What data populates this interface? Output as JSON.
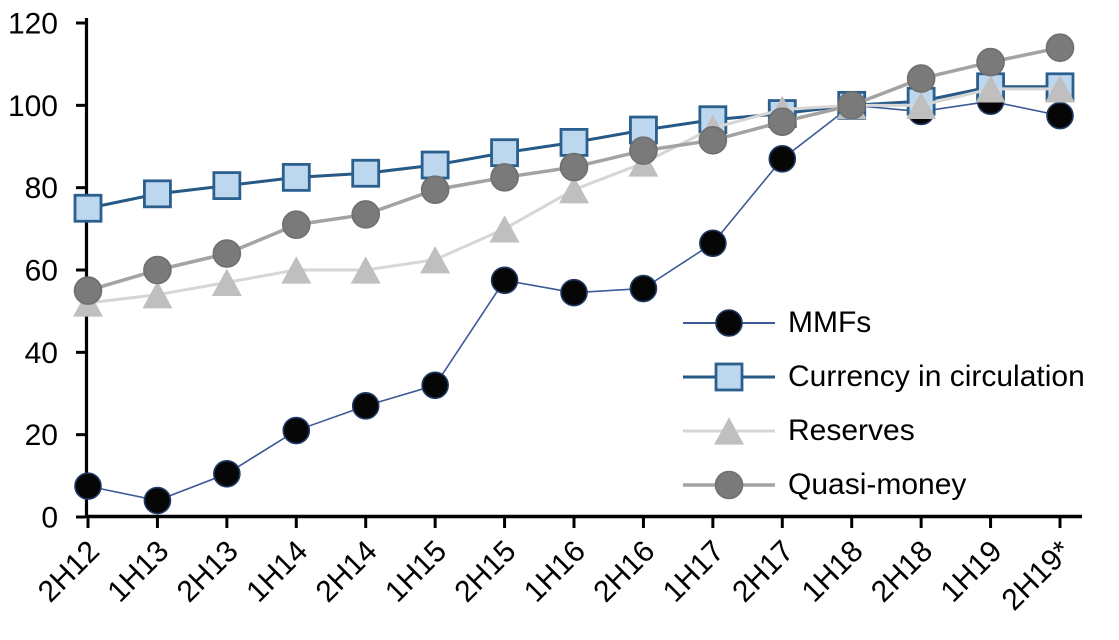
{
  "chart_data": {
    "type": "line",
    "title": "",
    "categories": [
      "2H12",
      "1H13",
      "2H13",
      "1H14",
      "2H14",
      "1H15",
      "2H15",
      "1H16",
      "2H16",
      "1H17",
      "2H17",
      "1H18",
      "2H18",
      "1H19",
      "2H19*"
    ],
    "series": [
      {
        "name": "MMFs",
        "marker": "circle",
        "marker_size": 28,
        "marker_color": "#060606",
        "marker_stroke": "#1f3864",
        "line_color": "#3d5a96",
        "line_width": 1.6,
        "values": [
          7.5,
          4,
          10.5,
          21,
          27,
          32,
          57.5,
          54.5,
          55.5,
          66.5,
          87,
          100,
          98.5,
          101,
          97.5
        ]
      },
      {
        "name": "Currency in circulation",
        "marker": "square",
        "marker_size": 29,
        "marker_color": "#bdd7ee",
        "marker_stroke": "#2a5f8e",
        "line_color": "#265985",
        "line_width": 3,
        "values": [
          75,
          78.5,
          80.5,
          82.5,
          83.5,
          85.5,
          88.5,
          91,
          94,
          96.5,
          98,
          100,
          101,
          104.5,
          104.5
        ]
      },
      {
        "name": "Reserves",
        "marker": "triangle",
        "marker_size": 31,
        "marker_color": "#bfbfbf",
        "marker_stroke": "#bfbfbf",
        "line_color": "#d6d6d6",
        "line_width": 3,
        "values": [
          52,
          54,
          57,
          60,
          60,
          62.5,
          70,
          79.5,
          86,
          94.5,
          99,
          100,
          100,
          104,
          104
        ]
      },
      {
        "name": "Quasi-money",
        "marker": "circle",
        "marker_size": 29,
        "marker_color": "#7a7a7a",
        "marker_stroke": "#6f6f6f",
        "line_color": "#a3a3a3",
        "line_width": 3.5,
        "values": [
          55,
          60,
          64,
          71,
          73.5,
          79.5,
          82.5,
          85,
          89,
          91.5,
          96,
          100,
          106.5,
          110.5,
          114
        ]
      }
    ],
    "xlabel": "",
    "ylabel": "",
    "ylim": [
      0,
      120
    ],
    "yticks": [
      0,
      20,
      40,
      60,
      80,
      100,
      120
    ],
    "grid": false,
    "legend_position": "inside-right",
    "axis_color": "#000000",
    "tick_label_color": "#000000"
  }
}
